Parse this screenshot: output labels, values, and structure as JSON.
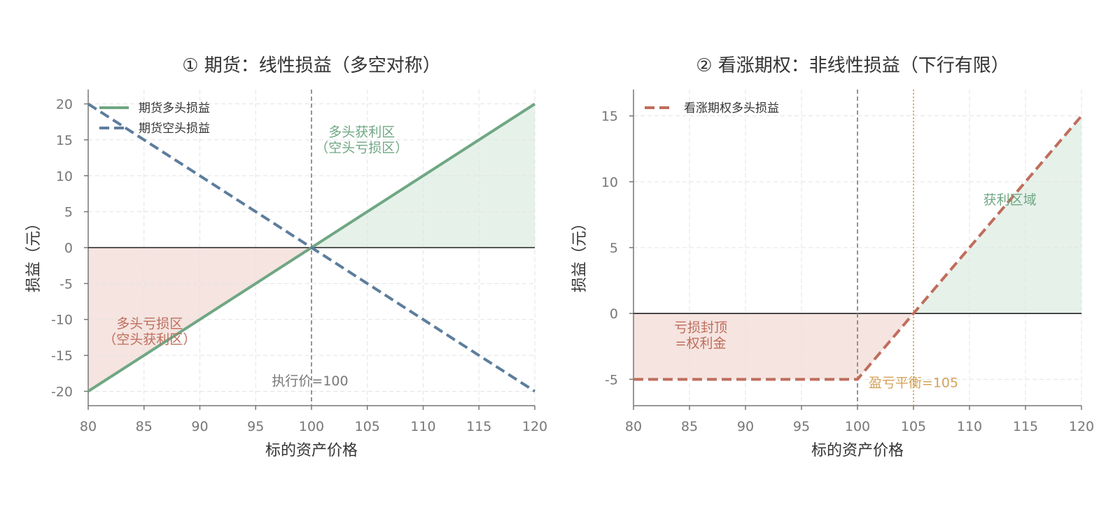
{
  "colors": {
    "green": "#6fa783",
    "blue": "#5d7d9c",
    "red": "#c06d5c",
    "gold": "#d4a35a",
    "profit_fill": "#e6f1ea",
    "loss_fill": "#f5e4e0",
    "grid": "#e3e3e3",
    "axis": "#777777",
    "zero": "#222222",
    "ref": "#888888"
  },
  "chart_data": [
    {
      "type": "line",
      "title": "① 期货：线性损益（多空对称）",
      "xlabel": "标的资产价格",
      "ylabel": "损益（元）",
      "xlim": [
        80,
        120
      ],
      "ylim": [
        -22,
        22
      ],
      "xticks": [
        80,
        85,
        90,
        95,
        100,
        105,
        110,
        115,
        120
      ],
      "yticks": [
        -20,
        -15,
        -10,
        -5,
        0,
        5,
        10,
        15,
        20
      ],
      "grid": true,
      "legend_position": "top-left",
      "series": [
        {
          "name": "期货多头损益",
          "style": "solid",
          "color": "#6fa783",
          "x": [
            80,
            120
          ],
          "y": [
            -20,
            20
          ]
        },
        {
          "name": "期货空头损益",
          "style": "dashed",
          "color": "#5d7d9c",
          "x": [
            80,
            120
          ],
          "y": [
            20,
            -20
          ]
        }
      ],
      "vline": {
        "x": 100,
        "label": "执行价=100"
      },
      "annotations": [
        {
          "text": "多头获利区",
          "x": 104.5,
          "y": 15.5,
          "color": "#6fa783"
        },
        {
          "text": "（空头亏损区）",
          "x": 104.5,
          "y": 13.3,
          "color": "#6fa783"
        },
        {
          "text": "多头亏损区",
          "x": 85.5,
          "y": -11.2,
          "color": "#c06d5c"
        },
        {
          "text": "（空头获利区）",
          "x": 85.5,
          "y": -13.4,
          "color": "#c06d5c"
        }
      ],
      "regions": [
        {
          "kind": "profit",
          "x": [
            100,
            120
          ],
          "y": [
            0,
            20
          ]
        },
        {
          "kind": "loss",
          "x": [
            80,
            100
          ],
          "y": [
            -20,
            0
          ]
        }
      ]
    },
    {
      "type": "line",
      "title": "② 看涨期权：非线性损益（下行有限）",
      "xlabel": "标的资产价格",
      "ylabel": "损益（元）",
      "xlim": [
        80,
        120
      ],
      "ylim": [
        -7,
        17
      ],
      "xticks": [
        80,
        85,
        90,
        95,
        100,
        105,
        110,
        115,
        120
      ],
      "yticks": [
        -5,
        0,
        5,
        10,
        15
      ],
      "grid": true,
      "legend_position": "top-left",
      "series": [
        {
          "name": "看涨期权多头损益",
          "style": "dashed",
          "color": "#c06d5c",
          "x": [
            80,
            100,
            120
          ],
          "y": [
            -5,
            -5,
            15
          ]
        }
      ],
      "vline": {
        "x": 100
      },
      "breakeven": {
        "x": 105,
        "label": "盈亏平衡=105",
        "color": "#d4a35a"
      },
      "annotations": [
        {
          "text": "获利区域",
          "x": 113.6,
          "y": 8.3,
          "color": "#6fa783"
        },
        {
          "text": "亏损封顶",
          "x": 86,
          "y": -1.4,
          "color": "#c06d5c"
        },
        {
          "text": "=权利金",
          "x": 86,
          "y": -2.6,
          "color": "#c06d5c"
        }
      ],
      "regions": [
        {
          "kind": "profit",
          "x": [
            105,
            120
          ],
          "y": [
            0,
            15
          ]
        },
        {
          "kind": "loss",
          "x": [
            80,
            100,
            105
          ],
          "y": [
            -5,
            -5,
            0
          ]
        }
      ]
    }
  ]
}
